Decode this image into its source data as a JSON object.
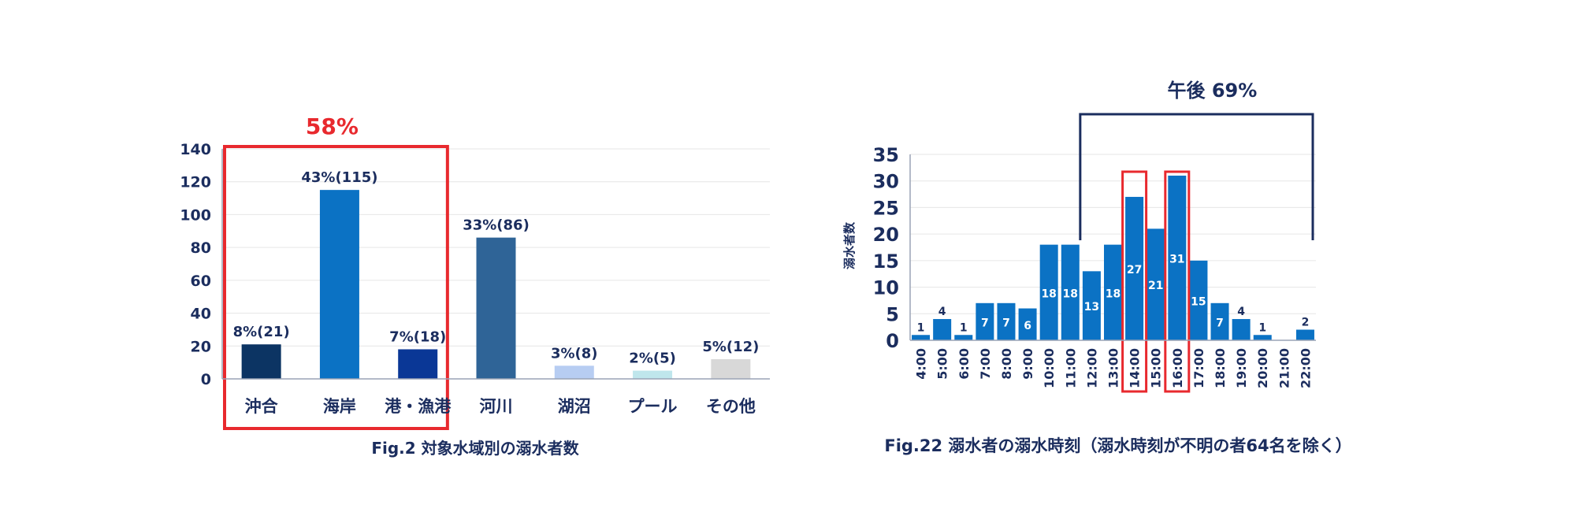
{
  "chart_data": [
    {
      "type": "bar",
      "caption": "Fig.2 対象水域別の溺水者数",
      "categories": [
        "沖合",
        "海岸",
        "港・漁港",
        "河川",
        "湖沼",
        "プール",
        "その他"
      ],
      "values": [
        21,
        115,
        18,
        86,
        8,
        5,
        12
      ],
      "data_labels": [
        "8%(21)",
        "43%(115)",
        "7%(18)",
        "33%(86)",
        "3%(8)",
        "2%(5)",
        "5%(12)"
      ],
      "colors": [
        "#0c3463",
        "#0b72c4",
        "#0a3796",
        "#2f6497",
        "#b7cdf2",
        "#bfe6ec",
        "#d8d8d8"
      ],
      "ylim": [
        0,
        140
      ],
      "yticks": [
        "0",
        "20",
        "40",
        "60",
        "80",
        "100",
        "120",
        "140"
      ],
      "grid": true,
      "highlight": {
        "label": "58%",
        "categories": [
          "沖合",
          "海岸",
          "港・漁港"
        ],
        "color": "#e8292e"
      }
    },
    {
      "type": "bar",
      "caption": "Fig.22 溺水者の溺水時刻（溺水時刻が不明の者64名を除く）",
      "ylabel": "溺水者数",
      "categories": [
        "4:00",
        "5:00",
        "6:00",
        "7:00",
        "8:00",
        "9:00",
        "10:00",
        "11:00",
        "12:00",
        "13:00",
        "14:00",
        "15:00",
        "16:00",
        "17:00",
        "18:00",
        "19:00",
        "20:00",
        "21:00",
        "22:00"
      ],
      "values": [
        1,
        4,
        1,
        7,
        7,
        6,
        18,
        18,
        13,
        18,
        27,
        21,
        31,
        15,
        7,
        4,
        1,
        0,
        2
      ],
      "data_labels": [
        "1",
        "4",
        "1",
        "7",
        "7",
        "6",
        "18",
        "18",
        "13",
        "18",
        "27",
        "21",
        "31",
        "15",
        "7",
        "4",
        "1",
        "",
        "2"
      ],
      "bar_color": "#0b72c4",
      "ylim": [
        0,
        35
      ],
      "yticks": [
        "0",
        "5",
        "10",
        "15",
        "20",
        "25",
        "30",
        "35"
      ],
      "grid": true,
      "bracket": {
        "label": "午後 69%",
        "from": "12:00",
        "to": "22:00",
        "color": "#1b2d5e"
      },
      "highlights": [
        "14:00",
        "16:00"
      ],
      "highlight_color": "#e8292e"
    }
  ]
}
